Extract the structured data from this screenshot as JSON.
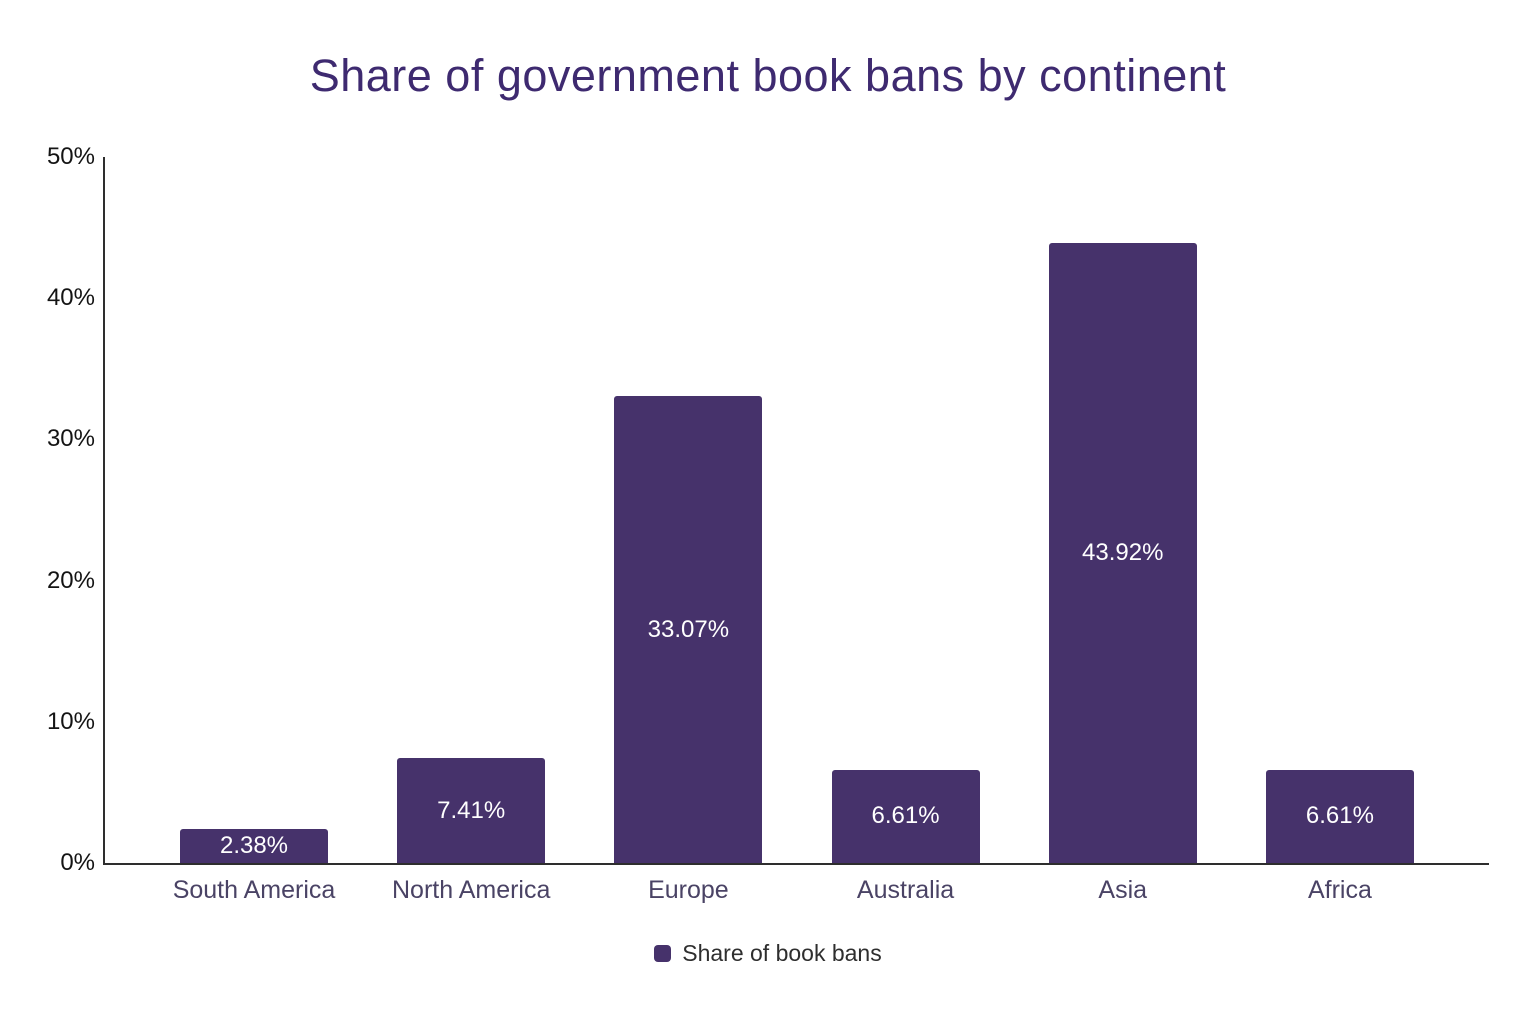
{
  "chart_data": {
    "type": "bar",
    "title": "Share of government book bans by continent",
    "categories": [
      "South America",
      "North America",
      "Europe",
      "Australia",
      "Asia",
      "Africa"
    ],
    "values": [
      2.38,
      7.41,
      33.07,
      6.61,
      43.92,
      6.61
    ],
    "value_labels": [
      "2.38%",
      "7.41%",
      "33.07%",
      "6.61%",
      "43.92%",
      "6.61%"
    ],
    "series": [
      {
        "name": "Share of book bans",
        "values": [
          2.38,
          7.41,
          33.07,
          6.61,
          43.92,
          6.61
        ]
      }
    ],
    "xlabel": "",
    "ylabel": "",
    "ylim": [
      0,
      50
    ],
    "yticks": [
      0,
      10,
      20,
      30,
      40,
      50
    ],
    "ytick_labels": [
      "0%",
      "10%",
      "20%",
      "30%",
      "40%",
      "50%"
    ],
    "grid": false,
    "legend": {
      "position": "bottom",
      "items": [
        {
          "label": "Share of book bans",
          "swatch": "square"
        }
      ]
    },
    "colors": {
      "bar": "#46326b",
      "title": "#3e2a70",
      "value_label": "#ffffff",
      "axis_line": "#2e2e2e",
      "ytick_text": "#141414",
      "xtick_text": "#4a4365",
      "legend_text": "#2e2e2e",
      "background": "#ffffff"
    }
  }
}
